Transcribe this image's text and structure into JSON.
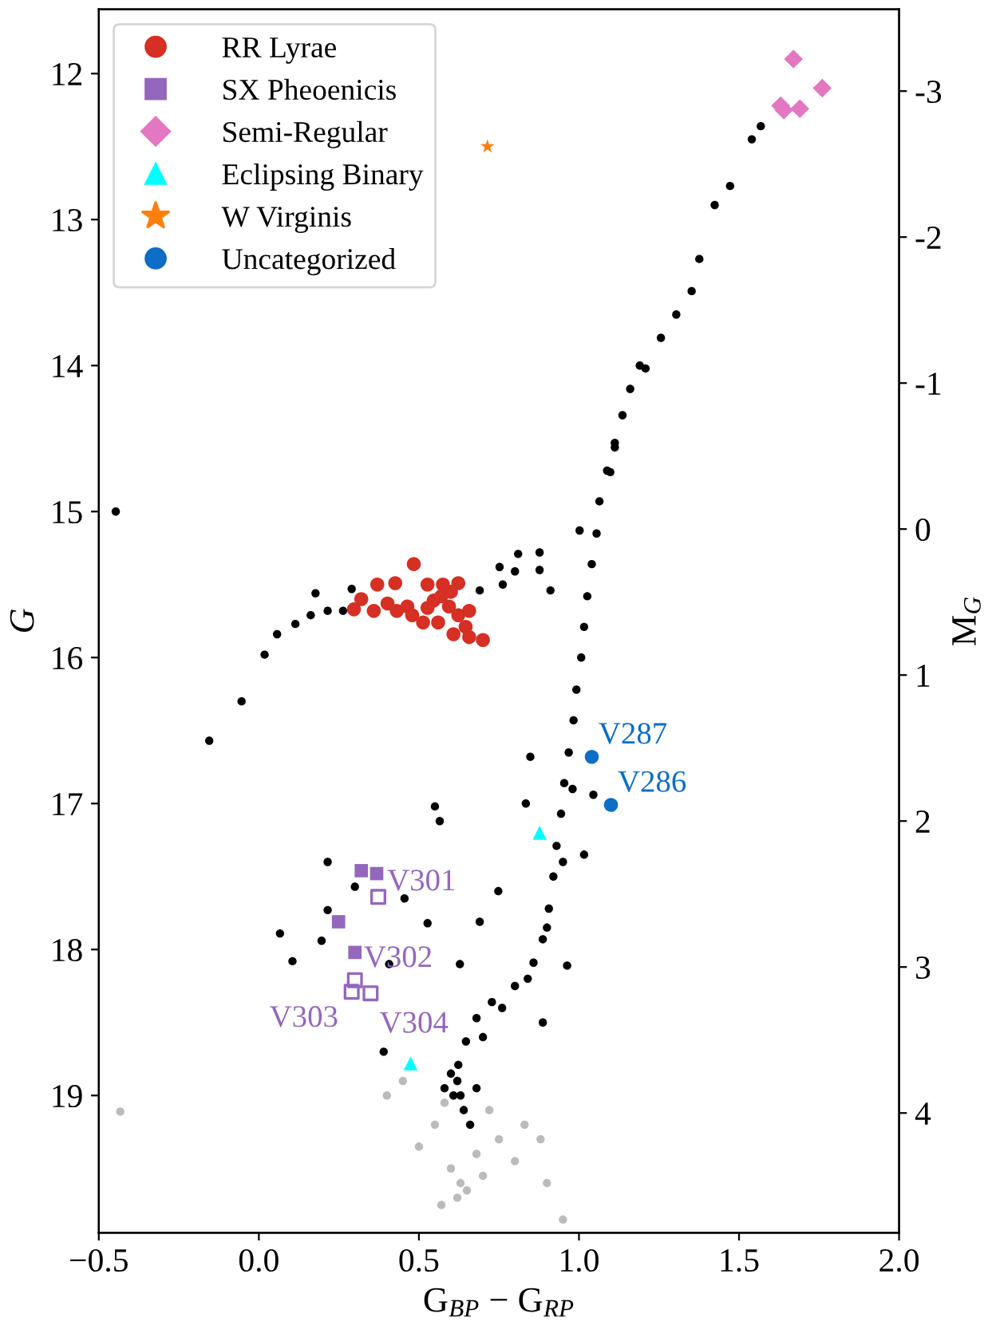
{
  "chart_data": {
    "type": "scatter",
    "xlabel": "G$_{BP}$ − G$_{RP}$",
    "ylabel": "G",
    "y2label": "M$_{G}$",
    "xlim": [
      -0.5,
      2.0
    ],
    "xticks": [
      {
        "value": -0.5,
        "label": "−0.5"
      },
      {
        "value": 0,
        "label": "0.0"
      },
      {
        "value": 0.5,
        "label": "0.5"
      },
      {
        "value": 1.0,
        "label": "1.0"
      },
      {
        "value": 1.5,
        "label": "1.5"
      },
      {
        "value": 2.0,
        "label": "2.0"
      }
    ],
    "ylim": [
      19.94,
      11.56
    ],
    "yticks": [
      12,
      13,
      14,
      15,
      16,
      17,
      18,
      19
    ],
    "y2lim": [
      4.82,
      -3.56
    ],
    "y2ticks": [
      {
        "value": -3,
        "label": "-3"
      },
      {
        "value": -2,
        "label": "-2"
      },
      {
        "value": -1,
        "label": "-1"
      },
      0,
      1,
      2,
      3,
      4
    ],
    "legend": "top left",
    "grid": false,
    "series": [
      {
        "color": "#bbbbbb",
        "marker": "circle",
        "x": [
          0.55,
          0.75,
          0.6,
          0.7,
          0.65,
          0.8,
          0.5,
          0.9,
          0.58,
          0.72,
          0.45,
          0.83,
          0.95,
          0.68,
          0.62,
          0.4,
          -0.433,
          0.88,
          0.63,
          0.57
        ],
        "values": [
          19.2,
          19.3,
          19.5,
          19.55,
          19.65,
          19.45,
          19.35,
          19.6,
          19.05,
          19.1,
          18.9,
          19.2,
          19.85,
          19.4,
          19.7,
          19.0,
          19.11,
          19.3,
          19.6,
          19.75
        ]
      },
      {
        "color": "#000000",
        "marker": "circle",
        "x": [
          1.568,
          1.54,
          1.472,
          1.424,
          1.376,
          1.352,
          1.304,
          1.256,
          1.208,
          1.16,
          1.136,
          1.112,
          1.088,
          1.064,
          1.055,
          1.04,
          1.026,
          1.016,
          1.007,
          0.992,
          0.983,
          0.968,
          0.954,
          0.944,
          0.93,
          0.92,
          0.906,
          0.887,
          0.858,
          0.8,
          0.728,
          0.68,
          0.647,
          0.623,
          0.608,
          1.19,
          1.112,
          1.002,
          1.098,
          0.911,
          0.018,
          0.057,
          0.114,
          0.162,
          0.215,
          0.263,
          0.177,
          0.29,
          0.69,
          0.762,
          0.8,
          0.877,
          0.877,
          0.81,
          0.752,
          -0.054,
          -0.155,
          -0.447,
          0.55,
          0.565,
          0.215,
          0.3,
          0.215,
          0.066,
          0.196,
          0.105,
          0.527,
          0.69,
          0.455,
          0.748,
          0.628,
          0.963,
          1.016,
          1.045,
          0.887,
          0.407,
          0.39,
          0.834,
          0.848,
          0.62,
          0.63,
          0.64,
          0.66,
          0.6,
          0.68,
          0.58,
          0.7,
          0.76,
          0.84,
          0.9,
          0.95,
          0.98
        ],
        "values": [
          12.36,
          12.45,
          12.77,
          12.9,
          13.27,
          13.49,
          13.65,
          13.81,
          14.02,
          14.16,
          14.34,
          14.56,
          14.72,
          14.93,
          15.15,
          15.36,
          15.58,
          15.79,
          16.0,
          16.22,
          16.43,
          16.65,
          16.86,
          17.07,
          17.29,
          17.5,
          17.72,
          17.93,
          18.09,
          18.25,
          18.36,
          18.47,
          18.63,
          18.79,
          19.0,
          14.0,
          14.53,
          15.13,
          14.73,
          15.54,
          15.98,
          15.84,
          15.77,
          15.71,
          15.68,
          15.68,
          15.56,
          15.53,
          15.54,
          15.5,
          15.41,
          15.4,
          15.28,
          15.29,
          15.38,
          16.3,
          16.57,
          15.0,
          17.02,
          17.12,
          17.4,
          17.57,
          17.73,
          17.89,
          17.94,
          18.08,
          17.82,
          17.81,
          17.65,
          17.6,
          18.1,
          18.11,
          17.35,
          16.94,
          18.5,
          18.1,
          18.7,
          17.0,
          16.68,
          18.9,
          19.0,
          19.1,
          19.2,
          18.85,
          18.95,
          18.95,
          18.6,
          18.4,
          18.2,
          17.85,
          17.4,
          16.9
        ]
      },
      {
        "name": "RR Lyrae",
        "color": "#d62f23",
        "marker": "circle",
        "x": [
          0.484,
          0.37,
          0.426,
          0.32,
          0.297,
          0.359,
          0.402,
          0.464,
          0.479,
          0.527,
          0.575,
          0.623,
          0.546,
          0.594,
          0.56,
          0.623,
          0.657,
          0.608,
          0.657,
          0.7,
          0.646,
          0.513,
          0.57,
          0.431,
          0.527,
          0.6
        ],
        "values": [
          15.36,
          15.5,
          15.49,
          15.6,
          15.67,
          15.68,
          15.63,
          15.65,
          15.71,
          15.5,
          15.5,
          15.49,
          15.61,
          15.65,
          15.76,
          15.71,
          15.68,
          15.84,
          15.86,
          15.88,
          15.79,
          15.76,
          15.58,
          15.68,
          15.66,
          15.55
        ]
      },
      {
        "name": "SX Pheoenicis",
        "color": "#9467bd",
        "marker": "square",
        "x": [
          0.32,
          0.368,
          0.249,
          0.3
        ],
        "values": [
          17.46,
          17.48,
          17.81,
          18.02
        ]
      },
      {
        "color": "#9467bd",
        "marker": "square",
        "x": [
          0.373,
          0.3,
          0.29,
          0.349
        ],
        "values": [
          17.64,
          18.21,
          18.29,
          18.3
        ]
      },
      {
        "name": "Semi-Regular",
        "color": "#e377c2",
        "marker": "diamond",
        "x": [
          1.67,
          1.76,
          1.63,
          1.69,
          1.64
        ],
        "values": [
          11.9,
          12.1,
          12.22,
          12.24,
          12.25
        ]
      },
      {
        "name": "Eclipsing Binary",
        "color": "#00ffff",
        "marker": "triangle",
        "x": [
          0.877,
          0.474
        ],
        "values": [
          17.2,
          18.78
        ]
      },
      {
        "name": "W Virginis",
        "color": "#ff7f0e",
        "marker": "star",
        "x": [
          0.714
        ],
        "values": [
          12.5
        ]
      },
      {
        "name": "Uncategorized",
        "color": "#0d6dc7",
        "marker": "circle",
        "x": [
          1.04,
          1.1
        ],
        "values": [
          16.68,
          17.01
        ]
      }
    ],
    "annotations": [
      {
        "text": "V287",
        "x": 1.04,
        "y": 16.68
      },
      {
        "text": "V286",
        "x": 1.1,
        "y": 17.01
      },
      {
        "text": "V301",
        "x": 0.373,
        "y": 17.64
      },
      {
        "text": "V302",
        "x": 0.3,
        "y": 18.21
      },
      {
        "text": "V303",
        "x": 0.29,
        "y": 18.29
      },
      {
        "text": "V304",
        "x": 0.349,
        "y": 18.3
      }
    ]
  }
}
